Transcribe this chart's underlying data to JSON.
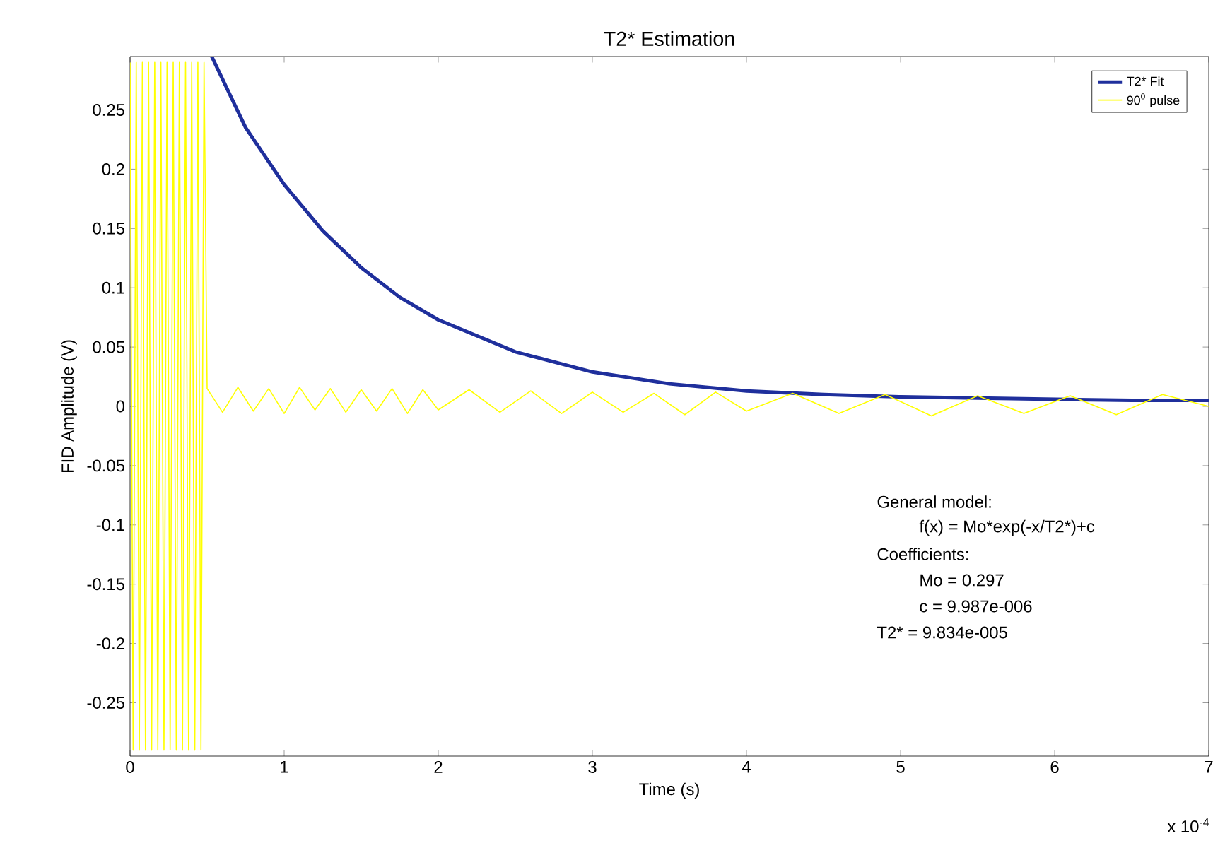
{
  "chart_data": {
    "type": "line",
    "title": "T2* Estimation",
    "xlabel": "Time (s)",
    "ylabel": "FID Amplitude (V)",
    "xlim": [
      0,
      7
    ],
    "xticks": [
      0,
      1,
      2,
      3,
      4,
      5,
      6,
      7
    ],
    "ylim": [
      -0.295,
      0.295
    ],
    "yticks": [
      -0.25,
      -0.2,
      -0.15,
      -0.1,
      -0.05,
      0,
      0.05,
      0.1,
      0.15,
      0.2,
      0.25
    ],
    "grid": false,
    "legend": "top right",
    "marker": "none",
    "line_style": "solid",
    "annotations": [
      "General model:",
      "f(x) = Mo*exp(-x/T2*)+c",
      "Coefficients:",
      "Mo =       0.297",
      "c =  9.987e-006",
      "T2* = 9.834e-005",
      "x 10$^{-4}$"
    ],
    "series": [
      {
        "name": "T2* Fit",
        "color": "#1f2f9c",
        "x": [
          0.53,
          0.75,
          1,
          1.25,
          1.5,
          1.75,
          2,
          2.5,
          3,
          3.5,
          4,
          4.5,
          5,
          5.5,
          6,
          6.5,
          7
        ],
        "values": [
          0.295,
          0.235,
          0.187,
          0.148,
          0.117,
          0.092,
          0.073,
          0.046,
          0.029,
          0.019,
          0.013,
          0.01,
          0.008,
          0.007,
          0.006,
          0.005,
          0.005
        ]
      },
      {
        "name": "90$^{0}$ pulse",
        "color": "#ffff00",
        "x": [
          0,
          0.02,
          0.04,
          0.06,
          0.08,
          0.1,
          0.12,
          0.14,
          0.16,
          0.18,
          0.2,
          0.22,
          0.24,
          0.26,
          0.28,
          0.3,
          0.32,
          0.34,
          0.36,
          0.38,
          0.4,
          0.42,
          0.44,
          0.46,
          0.48,
          0.5,
          0.6,
          0.7,
          0.8,
          0.9,
          1,
          1.1,
          1.2,
          1.3,
          1.4,
          1.5,
          1.6,
          1.7,
          1.8,
          1.9,
          2,
          2.2,
          2.4,
          2.6,
          2.8,
          3,
          3.2,
          3.4,
          3.6,
          3.8,
          4,
          4.3,
          4.6,
          4.9,
          5.2,
          5.5,
          5.8,
          6.1,
          6.4,
          6.7,
          7
        ],
        "values": [
          0.29,
          -0.29,
          0.29,
          -0.29,
          0.29,
          -0.29,
          0.29,
          -0.29,
          0.29,
          -0.29,
          0.29,
          -0.29,
          0.29,
          -0.29,
          0.29,
          -0.29,
          0.29,
          -0.29,
          0.29,
          -0.29,
          0.29,
          -0.29,
          0.29,
          -0.29,
          0.29,
          0.015,
          -0.005,
          0.016,
          -0.004,
          0.015,
          -0.006,
          0.016,
          -0.003,
          0.015,
          -0.005,
          0.014,
          -0.004,
          0.015,
          -0.006,
          0.014,
          -0.003,
          0.014,
          -0.005,
          0.013,
          -0.006,
          0.012,
          -0.005,
          0.011,
          -0.007,
          0.012,
          -0.004,
          0.011,
          -0.006,
          0.01,
          -0.008,
          0.009,
          -0.006,
          0.009,
          -0.007,
          0.01,
          0.0
        ]
      }
    ]
  }
}
